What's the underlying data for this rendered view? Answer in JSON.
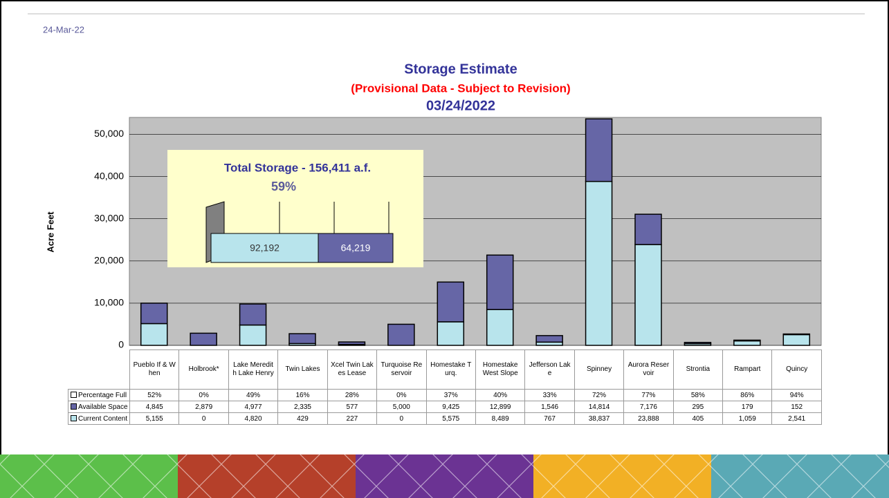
{
  "header": {
    "date": "24-Mar-22"
  },
  "chart_data": {
    "type": "bar",
    "stacked": true,
    "title": "Storage Estimate",
    "subtitle": "(Provisional Data - Subject to Revision)",
    "date": "03/24/2022",
    "ylabel": "Acre Feet",
    "categories": [
      "Pueblo If & When",
      "Holbrook*",
      "Lake Meredith Lake Henry",
      "Twin Lakes",
      "Xcel Twin Lakes Lease",
      "Turquoise Reservoir",
      "Homestake Turq.",
      "Homestake West Slope",
      "Jefferson Lake",
      "Spinney",
      "Aurora Reservoir",
      "Strontia",
      "Rampart",
      "Quincy"
    ],
    "series": [
      {
        "name": "Percentage Full",
        "color": "#ffffff",
        "values": [
          52,
          0,
          49,
          16,
          28,
          0,
          37,
          40,
          33,
          72,
          77,
          58,
          86,
          94
        ],
        "value_labels": [
          "52%",
          "0%",
          "49%",
          "16%",
          "28%",
          "0%",
          "37%",
          "40%",
          "33%",
          "72%",
          "77%",
          "58%",
          "86%",
          "94%"
        ]
      },
      {
        "name": "Available Space",
        "color": "#6666a6",
        "values": [
          4845,
          2879,
          4977,
          2335,
          577,
          5000,
          9425,
          12899,
          1546,
          14814,
          7176,
          295,
          179,
          152
        ],
        "value_labels": [
          "4,845",
          "2,879",
          "4,977",
          "2,335",
          "577",
          "5,000",
          "9,425",
          "12,899",
          "1,546",
          "14,814",
          "7,176",
          "295",
          "179",
          "152"
        ]
      },
      {
        "name": "Current Content",
        "color": "#b8e4ec",
        "values": [
          5155,
          0,
          4820,
          429,
          227,
          0,
          5575,
          8489,
          767,
          38837,
          23888,
          405,
          1059,
          2541
        ],
        "value_labels": [
          "5,155",
          "0",
          "4,820",
          "429",
          "227",
          "0",
          "5,575",
          "8,489",
          "767",
          "38,837",
          "23,888",
          "405",
          "1,059",
          "2,541"
        ]
      }
    ],
    "ylim": [
      0,
      54000
    ],
    "yticks": [
      0,
      {
        "value": 10000,
        "label": "10,000"
      },
      {
        "value": 20000,
        "label": "20,000"
      },
      {
        "value": 30000,
        "label": "30,000"
      },
      {
        "value": 40000,
        "label": "40,000"
      },
      {
        "value": 50000,
        "label": "50,000"
      }
    ],
    "grid": true,
    "inset": {
      "title": "Total Storage - 156,411 a.f.",
      "percent": "59%",
      "values": [
        92192,
        64219
      ],
      "value_labels": [
        "92,192",
        "64,219"
      ]
    }
  }
}
